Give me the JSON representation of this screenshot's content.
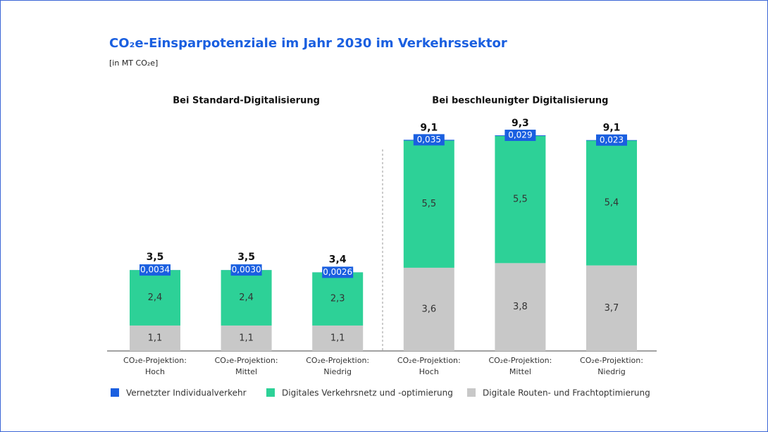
{
  "chart_data": {
    "type": "bar",
    "stacked": true,
    "title": "CO₂e-Einsparpotenziale im Jahr 2030 im Verkehrssektor",
    "subtitle": "[in MT CO₂e]",
    "groups": [
      "Bei Standard-Digitalisierung",
      "Bei beschleunigter Digitalisierung"
    ],
    "categories": [
      [
        "CO₂e-Projektion:",
        "Hoch"
      ],
      [
        "CO₂e-Projektion:",
        "Mittel"
      ],
      [
        "CO₂e-Projektion:",
        "Niedrig"
      ],
      [
        "CO₂e-Projektion:",
        "Hoch"
      ],
      [
        "CO₂e-Projektion:",
        "Mittel"
      ],
      [
        "CO₂e-Projektion:",
        "Niedrig"
      ]
    ],
    "series": [
      {
        "name": "Digitale Routen- und Frachtoptimierung",
        "color": "#c8c8c8",
        "values": [
          1.1,
          1.1,
          1.1,
          3.6,
          3.8,
          3.7
        ],
        "value_labels": [
          "1,1",
          "1,1",
          "1,1",
          "3,6",
          "3,8",
          "3,7"
        ]
      },
      {
        "name": "Digitales Verkehrsnetz und -optimierung",
        "color": "#2dd197",
        "values": [
          2.4,
          2.4,
          2.3,
          5.5,
          5.5,
          5.4
        ],
        "value_labels": [
          "2,4",
          "2,4",
          "2,3",
          "5,5",
          "5,5",
          "5,4"
        ]
      },
      {
        "name": "Vernetzter Individualverkehr",
        "color": "#1a5fe0",
        "values": [
          0.0034,
          0.003,
          0.0026,
          0.035,
          0.029,
          0.023
        ],
        "value_labels": [
          "0,0034",
          "0,0030",
          "0,0026",
          "0,035",
          "0,029",
          "0,023"
        ]
      }
    ],
    "totals": [
      3.5,
      3.5,
      3.4,
      9.1,
      9.3,
      9.1
    ],
    "total_labels": [
      "3,5",
      "3,5",
      "3,4",
      "9,1",
      "9,3",
      "9,1"
    ]
  }
}
